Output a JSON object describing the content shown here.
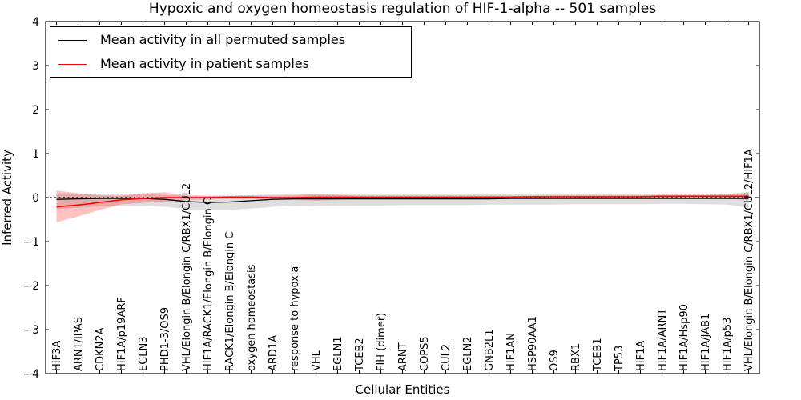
{
  "title": "Hypoxic and oxygen homeostasis regulation of HIF-1-alpha -- 501 samples",
  "legend": {
    "items": [
      {
        "label": "Mean activity in all permuted samples",
        "color": "#000000"
      },
      {
        "label": "Mean activity in patient samples",
        "color": "#ff0000"
      }
    ]
  },
  "chart_data": {
    "type": "line",
    "title": "Hypoxic and oxygen homeostasis regulation of HIF-1-alpha -- 501 samples",
    "xlabel": "Cellular Entities",
    "ylabel": "Inferred Activity",
    "ylim": [
      -4,
      4
    ],
    "yticks": [
      -4,
      -3,
      -2,
      -1,
      0,
      1,
      2,
      3,
      4
    ],
    "grid": false,
    "zero_line": true,
    "legend_position": "upper left",
    "categories": [
      "HIF3A",
      "ARNT/IPAS",
      "CDKN2A",
      "HIF1A/p19ARF",
      "EGLN3",
      "PHD1-3/OS9",
      "VHL/Elongin B/Elongin C/RBX1/CUL2",
      "HIF1A/RACK1/Elongin B/Elongin C",
      "RACK1/Elongin B/Elongin C",
      "oxygen homeostasis",
      "ARD1A",
      "response to hypoxia",
      "VHL",
      "EGLN1",
      "TCEB2",
      "FIH (dimer)",
      "ARNT",
      "COPS5",
      "CUL2",
      "EGLN2",
      "GNB2L1",
      "HIF1AN",
      "HSP90AA1",
      "OS9",
      "RBX1",
      "TCEB1",
      "TP53",
      "HIF1A",
      "HIF1A/ARNT",
      "HIF1A/Hsp90",
      "HIF1A/JAB1",
      "HIF1A/p53",
      "VHL/Elongin B/Elongin C/RBX1/CUL2/HIF1A"
    ],
    "series": [
      {
        "name": "Mean activity in all permuted samples",
        "color": "#000000",
        "line_width": 1.3,
        "band_color": "#000000",
        "band_opacity": 0.13,
        "values": [
          -0.04,
          -0.03,
          -0.02,
          -0.02,
          -0.02,
          -0.04,
          -0.09,
          -0.11,
          -0.1,
          -0.07,
          -0.04,
          -0.03,
          -0.03,
          -0.03,
          -0.03,
          -0.03,
          -0.03,
          -0.03,
          -0.03,
          -0.03,
          -0.03,
          -0.02,
          -0.02,
          -0.02,
          -0.02,
          -0.02,
          -0.02,
          -0.02,
          -0.02,
          -0.02,
          -0.02,
          -0.02,
          -0.02
        ],
        "band_upper": [
          0.1,
          0.09,
          0.08,
          0.08,
          0.08,
          0.06,
          0.05,
          0.04,
          0.04,
          0.06,
          0.08,
          0.09,
          0.09,
          0.09,
          0.09,
          0.09,
          0.09,
          0.09,
          0.09,
          0.09,
          0.08,
          0.08,
          0.08,
          0.08,
          0.08,
          0.08,
          0.08,
          0.08,
          0.07,
          0.07,
          0.07,
          0.08,
          0.13
        ],
        "band_lower": [
          -0.26,
          -0.23,
          -0.2,
          -0.19,
          -0.19,
          -0.21,
          -0.26,
          -0.28,
          -0.28,
          -0.25,
          -0.21,
          -0.19,
          -0.18,
          -0.18,
          -0.18,
          -0.18,
          -0.17,
          -0.17,
          -0.17,
          -0.17,
          -0.16,
          -0.16,
          -0.16,
          -0.16,
          -0.15,
          -0.15,
          -0.15,
          -0.15,
          -0.14,
          -0.14,
          -0.15,
          -0.16,
          -0.23
        ]
      },
      {
        "name": "Mean activity in patient samples",
        "color": "#ff0000",
        "line_width": 1.6,
        "band_color": "#ff0000",
        "band_opacity": 0.24,
        "values": [
          -0.21,
          -0.17,
          -0.11,
          -0.05,
          -0.02,
          0.0,
          0.0,
          0.0,
          0.01,
          0.01,
          0.0,
          0.0,
          0.01,
          0.01,
          0.01,
          0.01,
          0.01,
          0.01,
          0.01,
          0.01,
          0.01,
          0.01,
          0.02,
          0.02,
          0.02,
          0.02,
          0.02,
          0.02,
          0.03,
          0.03,
          0.03,
          0.03,
          0.03
        ],
        "band_upper": [
          0.16,
          0.1,
          0.05,
          0.04,
          0.1,
          0.12,
          0.05,
          0.04,
          0.04,
          0.04,
          0.04,
          0.05,
          0.08,
          0.06,
          0.04,
          0.04,
          0.04,
          0.04,
          0.04,
          0.04,
          0.04,
          0.04,
          0.04,
          0.05,
          0.05,
          0.05,
          0.05,
          0.05,
          0.06,
          0.06,
          0.06,
          0.07,
          0.1
        ],
        "band_lower": [
          -0.56,
          -0.43,
          -0.28,
          -0.15,
          -0.12,
          -0.09,
          -0.05,
          -0.04,
          -0.03,
          -0.03,
          -0.04,
          -0.05,
          -0.07,
          -0.05,
          -0.03,
          -0.03,
          -0.03,
          -0.03,
          -0.03,
          -0.03,
          -0.03,
          -0.03,
          -0.02,
          -0.02,
          -0.02,
          -0.02,
          -0.02,
          -0.02,
          -0.02,
          -0.02,
          -0.02,
          -0.03,
          -0.05
        ]
      }
    ]
  }
}
